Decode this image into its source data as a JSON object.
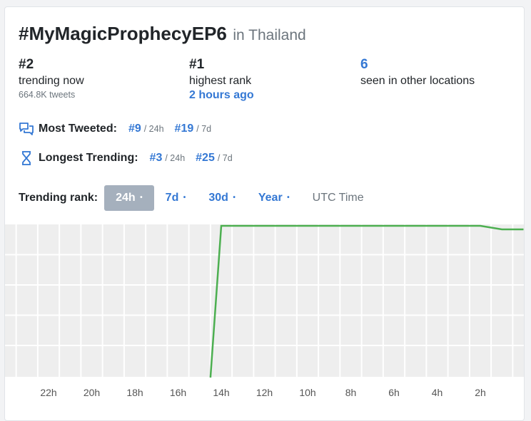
{
  "header": {
    "hashtag": "#MyMagicProphecyEP6",
    "location": "in Thailand"
  },
  "stats": {
    "trending": {
      "rank": "#2",
      "label": "trending now",
      "tweets": "664.8K tweets"
    },
    "highest": {
      "rank": "#1",
      "label": "highest rank",
      "when": "2 hours ago"
    },
    "other": {
      "count": "6",
      "label": "seen in other locations"
    }
  },
  "most_tweeted": {
    "label": "Most Tweeted:",
    "icon": "chat-bubbles-icon",
    "entries": [
      {
        "rank": "#9",
        "period": "/ 24h"
      },
      {
        "rank": "#19",
        "period": "/ 7d"
      }
    ]
  },
  "longest_trending": {
    "label": "Longest Trending:",
    "icon": "hourglass-icon",
    "entries": [
      {
        "rank": "#3",
        "period": "/ 24h"
      },
      {
        "rank": "#25",
        "period": "/ 7d"
      }
    ]
  },
  "range_tabs": {
    "label": "Trending rank:",
    "tabs": [
      "24h",
      "7d",
      "30d",
      "Year"
    ],
    "dot": "•",
    "active": "24h",
    "utc": "UTC Time"
  },
  "colors": {
    "accent": "#3478d4",
    "line": "#4caf50",
    "active_tab": "#a5b0bd",
    "plot_bg": "#eeeeee"
  },
  "chart_data": {
    "type": "line",
    "x": [
      "24h",
      "23h",
      "22h",
      "21h",
      "20h",
      "19h",
      "18h",
      "17h",
      "16h",
      "15h",
      "14h",
      "13h",
      "12h",
      "11h",
      "10h",
      "9h",
      "8h",
      "7h",
      "6h",
      "5h",
      "4h",
      "3h",
      "2h",
      "1h",
      "0h"
    ],
    "x_tick_labels": [
      "22h",
      "20h",
      "18h",
      "16h",
      "14h",
      "12h",
      "10h",
      "8h",
      "6h",
      "4h",
      "2h"
    ],
    "series": [
      {
        "points": [
          [
            14.5,
            50
          ],
          [
            14,
            1
          ],
          [
            2,
            1
          ],
          [
            1,
            2
          ],
          [
            0,
            2
          ]
        ]
      }
    ],
    "y_reversed": true,
    "ylim": [
      1,
      50
    ],
    "grid": true
  }
}
